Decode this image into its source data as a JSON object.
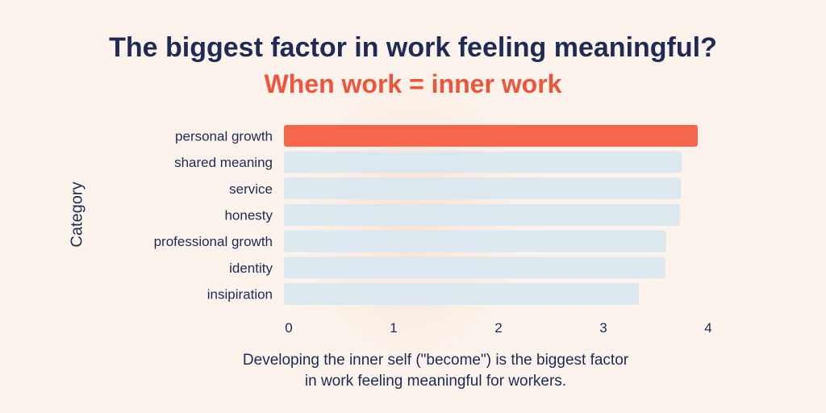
{
  "header": {
    "title": "The biggest factor in work feeling meaningful?",
    "subtitle": "When work = inner work"
  },
  "caption": "Developing the inner self (\"become\") is the biggest factor in work feeling meaningful for workers.",
  "colors": {
    "highlight": "#f5674c",
    "bar": "#dbe7ef",
    "text": "#1f2a55",
    "subtitle": "#f0553b"
  },
  "chart_data": {
    "type": "bar",
    "orientation": "horizontal",
    "categories": [
      "personal growth",
      "shared meaning",
      "service",
      "honesty",
      "professional growth",
      "identity",
      "insipiration"
    ],
    "values": [
      3.9,
      3.75,
      3.74,
      3.73,
      3.6,
      3.59,
      3.34
    ],
    "highlighted_index": 0,
    "ylabel": "Category",
    "xlabel": "",
    "xlim": [
      0,
      4
    ],
    "xticks": [
      "0",
      "1",
      "2",
      "3",
      "4"
    ],
    "grid": false,
    "legend": "none"
  }
}
